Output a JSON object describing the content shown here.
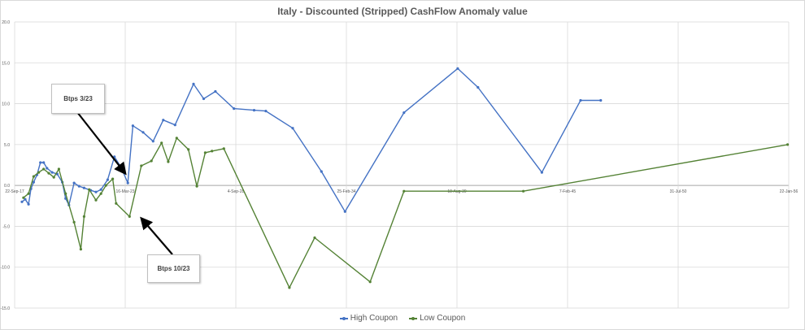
{
  "chart_data": {
    "type": "line",
    "title": "Italy - Discounted (Stripped) CashFlow Anomaly value",
    "xlabel": "",
    "ylabel": "",
    "ylim": [
      -15,
      20
    ],
    "y_ticks": [
      "20.0",
      "15.0",
      "10.0",
      "5.0",
      "0.0",
      "-5.0",
      "-10.0",
      "-15.0"
    ],
    "x_ticks": [
      "22-Sep-17",
      "16-Mar-23",
      "4-Sep-28",
      "25-Feb-34",
      "18-Aug-39",
      "7-Feb-45",
      "31-Jul-50",
      "22-Jan-56"
    ],
    "grid": true,
    "legend_position": "bottom",
    "series": [
      {
        "name": "High Coupon",
        "color": "#4472c4",
        "x": [
          "2018-02-01",
          "2018-04-01",
          "2018-06-01",
          "2018-07-15",
          "2018-09-01",
          "2018-11-01",
          "2019-01-01",
          "2019-03-01",
          "2019-05-01",
          "2019-08-01",
          "2019-11-01",
          "2020-02-01",
          "2020-04-01",
          "2020-06-01",
          "2020-09-01",
          "2020-12-01",
          "2021-03-01",
          "2021-07-01",
          "2021-10-01",
          "2022-01-01",
          "2022-05-01",
          "2022-09-01",
          "2023-01-01",
          "2023-05-01",
          "2023-08-01",
          "2024-02-01",
          "2024-08-01",
          "2025-02-01",
          "2025-09-01",
          "2026-08-01",
          "2027-02-01",
          "2027-09-01",
          "2028-08-01",
          "2029-08-01",
          "2030-03-01",
          "2031-07-01",
          "2032-12-01",
          "2034-02-01",
          "2037-01-01",
          "2039-09-01",
          "2040-09-01",
          "2043-11-01",
          "2045-10-01",
          "2046-10-01"
        ],
        "values": [
          -2.0,
          -1.7,
          -2.3,
          -0.4,
          0.4,
          1.3,
          2.8,
          2.8,
          2.1,
          1.6,
          1.4,
          0.4,
          -1.6,
          -2.4,
          0.3,
          -0.1,
          -0.3,
          -0.6,
          -0.8,
          -0.5,
          0.7,
          3.5,
          2.2,
          0.3,
          7.3,
          6.5,
          5.4,
          8.0,
          7.4,
          12.4,
          10.6,
          11.5,
          9.4,
          9.2,
          9.1,
          7.0,
          1.7,
          -3.2,
          8.9,
          14.3,
          12.0,
          1.6,
          10.4,
          10.4
        ]
      },
      {
        "name": "Low Coupon",
        "color": "#548235",
        "x": [
          "2018-03-01",
          "2018-06-01",
          "2018-09-01",
          "2018-12-01",
          "2019-03-01",
          "2019-06-01",
          "2019-09-01",
          "2019-12-01",
          "2020-04-01",
          "2020-09-01",
          "2021-01-01",
          "2021-03-01",
          "2021-06-01",
          "2021-10-01",
          "2022-01-01",
          "2022-04-01",
          "2022-08-01",
          "2022-10-01",
          "2023-06-01",
          "2024-01-01",
          "2024-07-01",
          "2025-01-01",
          "2025-05-01",
          "2025-10-01",
          "2026-05-01",
          "2026-10-01",
          "2027-03-01",
          "2027-07-01",
          "2028-02-01",
          "2031-05-01",
          "2032-08-01",
          "2035-05-01",
          "2037-01-01",
          "2042-12-01",
          "2056-01-01"
        ],
        "values": [
          -1.5,
          -1.0,
          1.1,
          1.6,
          2.0,
          1.5,
          1.0,
          2.0,
          -1.0,
          -4.5,
          -7.8,
          -3.8,
          -0.5,
          -1.8,
          -1.0,
          0.0,
          0.8,
          -2.2,
          -3.8,
          2.4,
          3.0,
          5.2,
          2.9,
          5.8,
          4.4,
          -0.1,
          4.0,
          4.2,
          4.5,
          -12.5,
          -6.4,
          -11.8,
          -0.7,
          -0.7,
          5.0
        ]
      }
    ],
    "annotations": [
      "Btps 3/23",
      "Btps 10/23"
    ]
  }
}
